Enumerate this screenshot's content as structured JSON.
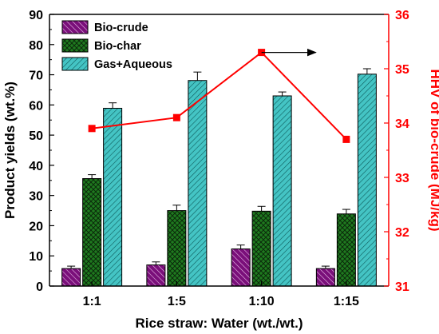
{
  "chart_data": {
    "type": "bar",
    "categories": [
      "1:1",
      "1:5",
      "1:10",
      "1:15"
    ],
    "xlabel": "Rice straw: Water (wt./wt.)",
    "ylabel": "Product yields (wt.%)",
    "ylim": [
      0,
      90
    ],
    "yticks": [
      0,
      10,
      20,
      30,
      40,
      50,
      60,
      70,
      80,
      90
    ],
    "series": [
      {
        "name": "Bio-crude",
        "values": [
          5.8,
          7.0,
          12.3,
          5.8
        ],
        "errors": [
          0.8,
          1.0,
          1.3,
          0.8
        ],
        "color": "#7a0f7a",
        "pattern": "diagonal-lines"
      },
      {
        "name": "Bio-char",
        "values": [
          35.6,
          25.0,
          24.8,
          23.9
        ],
        "errors": [
          1.3,
          1.8,
          1.6,
          1.5
        ],
        "color": "#1f7a1f",
        "pattern": "crosshatch"
      },
      {
        "name": "Gas+Aqueous",
        "values": [
          58.9,
          68.1,
          63.0,
          70.2
        ],
        "errors": [
          1.8,
          2.8,
          1.3,
          1.8
        ],
        "color": "#44c4c4",
        "pattern": "diagonal-lines"
      }
    ],
    "secondary": {
      "type": "line",
      "ylabel": "HHV of bio-crude (MJ/kg)",
      "ylim": [
        31,
        36
      ],
      "yticks": [
        31,
        32,
        33,
        34,
        35,
        36
      ],
      "values": [
        33.9,
        34.1,
        35.3,
        33.7
      ],
      "color": "#ff0000",
      "marker": "square"
    },
    "annotation": {
      "type": "arrow",
      "direction": "right",
      "points_to": "secondary-axis"
    },
    "legend_position": "top-left",
    "grid": false
  }
}
